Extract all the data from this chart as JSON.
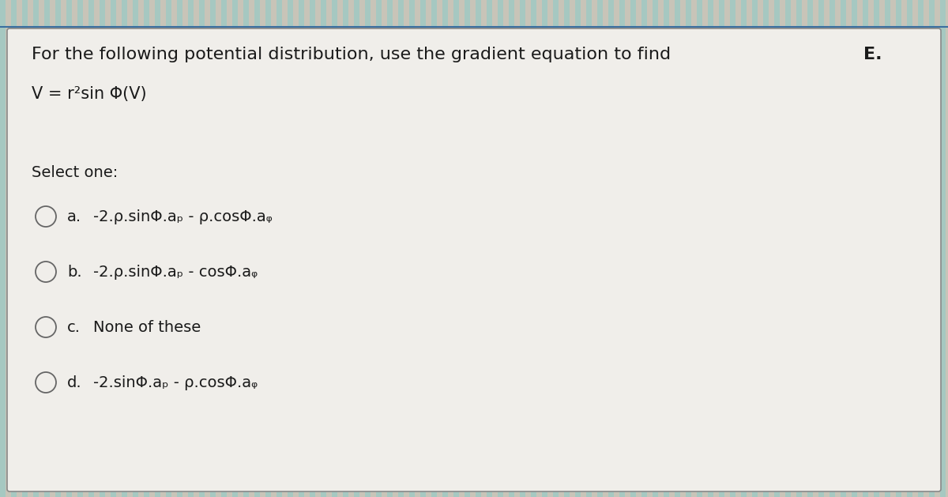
{
  "bg_color": "#c8c4b8",
  "card_color": "#f0eeea",
  "card_border_color": "#888888",
  "text_color": "#1a1a1a",
  "circle_color": "#666666",
  "title_regular": "For the following potential distribution, use the gradient equation to find ",
  "title_bold": "E.",
  "equation": "V = r²sin Φ(V)",
  "select_label": "Select one:",
  "options": [
    {
      "label": "a.",
      "text": "-2.ρ.sinΦ.aₚ - ρ.cosΦ.aᵩ"
    },
    {
      "label": "b.",
      "text": "-2.ρ.sinΦ.aₚ - cosΦ.aᵩ"
    },
    {
      "label": "c.",
      "text": "None of these"
    },
    {
      "label": "d.",
      "text": "-2.sinΦ.aₚ - ρ.cosΦ.aᵩ"
    }
  ],
  "font_size_title": 16,
  "font_size_eq": 15,
  "font_size_select": 14,
  "font_size_option": 14,
  "stripe_color": "#7ecece",
  "stripe_alpha": 0.45,
  "bottom_line_color": "#3a6ea0"
}
